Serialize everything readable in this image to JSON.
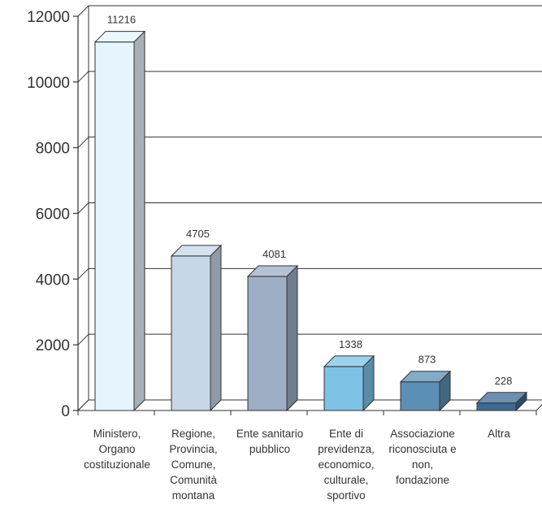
{
  "chart_data": {
    "type": "bar",
    "style": "3d",
    "categories": [
      [
        "Ministero,",
        "Organo",
        "costituzionale"
      ],
      [
        "Regione,",
        "Provincia,",
        "Comune,",
        "Comunità",
        "montana"
      ],
      [
        "Ente sanitario",
        "pubblico"
      ],
      [
        "Ente di",
        "previdenza,",
        "economico,",
        "culturale,",
        "sportivo"
      ],
      [
        "Associazione",
        "riconosciuta e",
        "non,",
        "fondazione"
      ],
      [
        "Altra"
      ]
    ],
    "values": [
      11216,
      4705,
      4081,
      1338,
      873,
      228
    ],
    "data_labels": [
      "11216",
      "4705",
      "4081",
      "1338",
      "873",
      "228"
    ],
    "ylim": [
      0,
      12000
    ],
    "yticks": [
      0,
      2000,
      4000,
      6000,
      8000,
      10000,
      12000
    ],
    "ytick_labels": [
      "0",
      "2000",
      "4000",
      "6000",
      "8000",
      "10000",
      "12000"
    ],
    "grid": true,
    "legend": "none",
    "colors": {
      "bars": [
        "#e6f5fd",
        "#c7d7e8",
        "#9eaec4",
        "#7ec3e6",
        "#5b8fb3",
        "#3f6a95"
      ],
      "axis": "#333333",
      "grid": "#333333",
      "text": "#333333"
    }
  }
}
